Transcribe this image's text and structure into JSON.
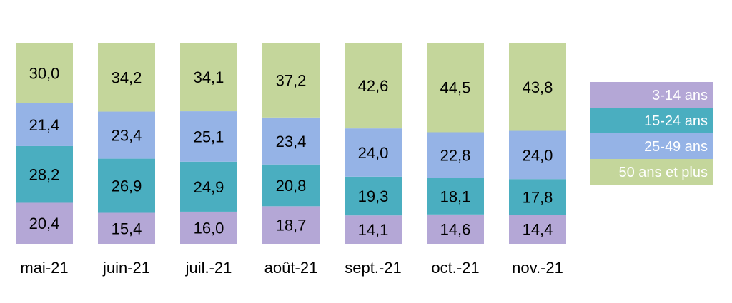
{
  "chart_data": {
    "type": "bar",
    "stacked": true,
    "percent_stacked": true,
    "categories": [
      "mai-21",
      "juin-21",
      "juil.-21",
      "août-21",
      "sept.-21",
      "oct.-21",
      "nov.-21"
    ],
    "series": [
      {
        "name": "3-14 ans",
        "color": "#b4a7d6",
        "values": [
          "20,4",
          "15,4",
          "16,0",
          "18,7",
          "14,1",
          "14,6",
          "14,4"
        ]
      },
      {
        "name": "15-24 ans",
        "color": "#4aaec0",
        "values": [
          "28,2",
          "26,9",
          "24,9",
          "20,8",
          "19,3",
          "18,1",
          "17,8"
        ]
      },
      {
        "name": "25-49 ans",
        "color": "#95b3e6",
        "values": [
          "21,4",
          "23,4",
          "25,1",
          "23,4",
          "24,0",
          "22,8",
          "24,0"
        ]
      },
      {
        "name": "50 ans et plus",
        "color": "#c4d69b",
        "values": [
          "30,0",
          "34,2",
          "34,1",
          "37,2",
          "42,6",
          "44,5",
          "43,8"
        ]
      }
    ],
    "legend_position": "right",
    "legend_order": [
      "3-14 ans",
      "15-24 ans",
      "25-49 ans",
      "50 ans et plus"
    ],
    "grid": false
  }
}
